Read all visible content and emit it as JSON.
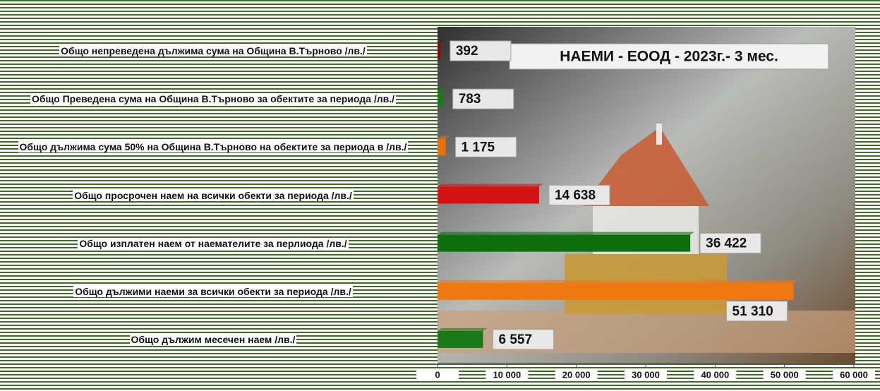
{
  "chart_data": {
    "type": "bar",
    "orientation": "horizontal",
    "title": "НАЕМИ - ЕООД - 2023г.- 3 мес.",
    "categories": [
      "Общо непреведена дължима сума на Община В.Търново  /лв./",
      "Общо Преведена сума на Община В.Търново за обектите за периода  /лв./",
      "Общо дължима сума 50% на Община В.Търново на обектите за периода в  /лв./",
      "Общо просрочен наем на всички обекти за периода /лв./",
      "Общо изплатен наем от наемателите за перлиода /лв./",
      "Общо дължими наеми за всички обекти за периода /лв./",
      "Общо дължим месечен наем /лв./"
    ],
    "values": [
      392,
      783,
      1175,
      14638,
      36422,
      51310,
      6557
    ],
    "value_labels": [
      "392",
      "783",
      "1 175",
      "14 638",
      "36 422",
      "51 310",
      "6 557"
    ],
    "colors": [
      "#8b0000",
      "#1a7a1a",
      "#e8700a",
      "#d41414",
      "#0f6e0f",
      "#f07810",
      "#1a7a1a"
    ],
    "xlim": [
      0,
      60000
    ],
    "xticks": [
      0,
      {
        "value": 10000,
        "label": "10 000"
      },
      {
        "value": 20000,
        "label": "20 000"
      },
      {
        "value": 30000,
        "label": "30 000"
      },
      {
        "value": 40000,
        "label": "40 000"
      },
      {
        "value": 50000,
        "label": "50 000"
      },
      {
        "value": 60000,
        "label": "60 000"
      }
    ]
  }
}
